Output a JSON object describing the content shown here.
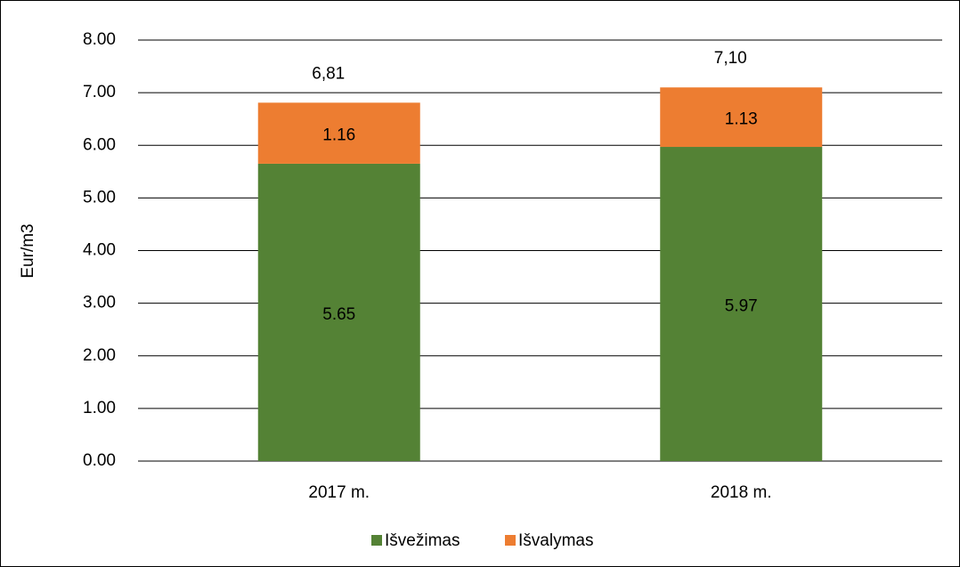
{
  "chart_data": {
    "type": "bar",
    "stacked": true,
    "categories": [
      "2017 m.",
      "2018 m."
    ],
    "series": [
      {
        "name": "Išvežimas",
        "color": "#548235",
        "values": [
          5.65,
          5.97
        ]
      },
      {
        "name": "Išvalymas",
        "color": "#ed7d31",
        "values": [
          1.16,
          1.13
        ]
      }
    ],
    "annotations": [
      "6,81",
      "7,10"
    ],
    "y_label": "Eur/m3",
    "ylim": [
      0,
      8
    ],
    "yticks": [
      {
        "value": 0,
        "label": "0.00"
      },
      {
        "value": 1,
        "label": "1.00"
      },
      {
        "value": 2,
        "label": "2.00"
      },
      {
        "value": 3,
        "label": "3.00"
      },
      {
        "value": 4,
        "label": "4.00"
      },
      {
        "value": 5,
        "label": "5.00"
      },
      {
        "value": 6,
        "label": "6.00"
      },
      {
        "value": 7,
        "label": "7.00"
      },
      {
        "value": 8,
        "label": "8.00"
      }
    ],
    "grid": true,
    "legend": "bottom"
  }
}
